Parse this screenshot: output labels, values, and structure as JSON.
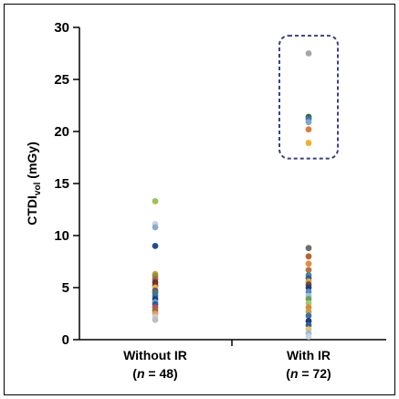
{
  "chart_data": {
    "type": "scatter",
    "title": "",
    "ylabel": "CTDI",
    "ylabel_subscript": "vol",
    "ylabel_unit": " (mGy)",
    "ylim": [
      0,
      30
    ],
    "yticks": [
      0,
      5,
      10,
      15,
      20,
      25,
      30
    ],
    "grid": false,
    "categories": [
      {
        "label": "Without IR",
        "n_prefix": "(",
        "n_symbol": "n",
        "n_text": " = 48)"
      },
      {
        "label": "With IR",
        "n_prefix": "(",
        "n_symbol": "n",
        "n_text": " = 72)"
      }
    ],
    "series": [
      {
        "category": 0,
        "points": [
          {
            "y": 13.3,
            "color": "#9cc24e"
          },
          {
            "y": 11.1,
            "color": "#c9d2e0"
          },
          {
            "y": 10.8,
            "color": "#8fa9c9"
          },
          {
            "y": 9.0,
            "color": "#1f4e8c"
          },
          {
            "y": 6.3,
            "color": "#d9932e"
          },
          {
            "y": 6.1,
            "color": "#7a9e3a"
          },
          {
            "y": 5.8,
            "color": "#b8574b"
          },
          {
            "y": 5.5,
            "color": "#5b3a29"
          },
          {
            "y": 5.2,
            "color": "#8a2e2e"
          },
          {
            "y": 5.0,
            "color": "#e0b84a"
          },
          {
            "y": 4.7,
            "color": "#6b4c8a"
          },
          {
            "y": 4.5,
            "color": "#4a7c59"
          },
          {
            "y": 4.2,
            "color": "#3b6fb6"
          },
          {
            "y": 3.9,
            "color": "#1e3f7a"
          },
          {
            "y": 3.6,
            "color": "#5fa0c8"
          },
          {
            "y": 3.4,
            "color": "#2d5aa0"
          },
          {
            "y": 3.1,
            "color": "#c0504d"
          },
          {
            "y": 2.8,
            "color": "#9b6a3c"
          },
          {
            "y": 2.5,
            "color": "#e39a5a"
          },
          {
            "y": 2.2,
            "color": "#cccccc"
          },
          {
            "y": 1.9,
            "color": "#bdbdbd"
          }
        ]
      },
      {
        "category": 1,
        "points": [
          {
            "y": 27.5,
            "color": "#a6a6a6"
          },
          {
            "y": 21.4,
            "color": "#2e6b3a"
          },
          {
            "y": 21.2,
            "color": "#4a6fa5"
          },
          {
            "y": 20.9,
            "color": "#7fa8d0"
          },
          {
            "y": 20.2,
            "color": "#e07a3c"
          },
          {
            "y": 18.9,
            "color": "#f2b02e"
          },
          {
            "y": 8.8,
            "color": "#6e6e6e"
          },
          {
            "y": 8.0,
            "color": "#b7652e"
          },
          {
            "y": 7.3,
            "color": "#e38b46"
          },
          {
            "y": 6.7,
            "color": "#c07040"
          },
          {
            "y": 6.2,
            "color": "#4a8a9e"
          },
          {
            "y": 5.9,
            "color": "#2b5c9e"
          },
          {
            "y": 5.6,
            "color": "#d6a64a"
          },
          {
            "y": 5.3,
            "color": "#7a4a2e"
          },
          {
            "y": 5.0,
            "color": "#1f3f7a"
          },
          {
            "y": 4.6,
            "color": "#5a8bc4"
          },
          {
            "y": 4.2,
            "color": "#9ec1dd"
          },
          {
            "y": 3.9,
            "color": "#6fa058"
          },
          {
            "y": 3.5,
            "color": "#a0c87a"
          },
          {
            "y": 3.1,
            "color": "#d98c3a"
          },
          {
            "y": 2.7,
            "color": "#c9a23a"
          },
          {
            "y": 2.3,
            "color": "#3a6fb0"
          },
          {
            "y": 1.8,
            "color": "#1e3c7a"
          },
          {
            "y": 1.4,
            "color": "#355e9e"
          },
          {
            "y": 1.0,
            "color": "#e2c46a"
          },
          {
            "y": 0.6,
            "color": "#9ab8d8"
          },
          {
            "y": 0.3,
            "color": "#c4d4e4"
          }
        ]
      }
    ],
    "highlight_box": {
      "category": 1,
      "y_range": [
        17.4,
        29.2
      ],
      "color": "#3b3f8c"
    }
  }
}
